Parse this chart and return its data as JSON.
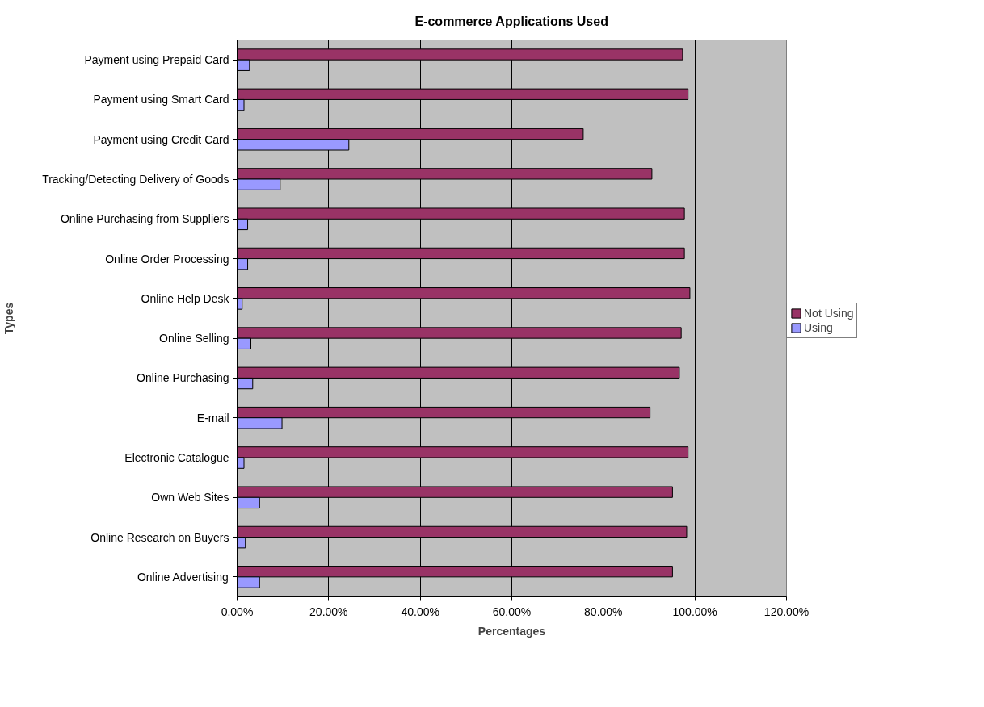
{
  "chart_data": {
    "type": "bar",
    "orientation": "horizontal",
    "title": "E-commerce Applications Used",
    "xlabel": "Percentages",
    "ylabel": "Types",
    "categories": [
      "Payment using Prepaid Card",
      "Payment using Smart Card",
      "Payment using Credit Card",
      "Tracking/Detecting Delivery of Goods",
      "Online Purchasing from Suppliers",
      "Online Order Processing",
      "Online Help Desk",
      "Online Selling",
      "Online Purchasing",
      "E-mail",
      "Electronic Catalogue",
      "Own Web Sites",
      "Online Research on Buyers",
      "Online Advertising"
    ],
    "series": [
      {
        "name": "Not Using",
        "color": "#993366",
        "values": [
          97.3,
          98.5,
          75.6,
          90.6,
          97.7,
          97.7,
          98.9,
          97.0,
          96.6,
          90.2,
          98.5,
          95.1,
          98.2,
          95.1
        ]
      },
      {
        "name": "Using",
        "color": "#9999ff",
        "values": [
          2.7,
          1.5,
          24.4,
          9.4,
          2.3,
          2.3,
          1.1,
          3.0,
          3.4,
          9.8,
          1.5,
          4.9,
          1.8,
          4.9
        ]
      }
    ],
    "xlim": [
      0,
      120
    ],
    "xticks": [
      {
        "value": 0,
        "label": "0.00%"
      },
      {
        "value": 20,
        "label": "20.00%"
      },
      {
        "value": 40,
        "label": "40.00%"
      },
      {
        "value": 60,
        "label": "60.00%"
      },
      {
        "value": 80,
        "label": "80.00%"
      },
      {
        "value": 100,
        "label": "100.00%"
      },
      {
        "value": 120,
        "label": "120.00%"
      }
    ],
    "grid": "x",
    "legend": "right"
  }
}
